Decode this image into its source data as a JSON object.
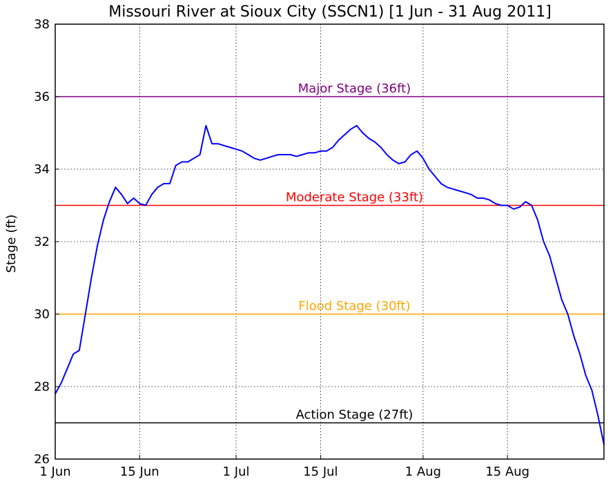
{
  "chart_data": {
    "type": "line",
    "title": "Missouri River at Sioux City (SSCN1) [1 Jun - 31 Aug 2011]",
    "xlabel": "",
    "ylabel": "Stage (ft)",
    "ylim": [
      26,
      38
    ],
    "xlim": [
      "2011-06-01",
      "2011-08-31"
    ],
    "grid": true,
    "x_ticks": [
      {
        "date": "2011-06-01",
        "label": "1 Jun"
      },
      {
        "date": "2011-06-15",
        "label": "15 Jun"
      },
      {
        "date": "2011-07-01",
        "label": "1 Jul"
      },
      {
        "date": "2011-07-15",
        "label": "15 Jul"
      },
      {
        "date": "2011-08-01",
        "label": "1 Aug"
      },
      {
        "date": "2011-08-15",
        "label": "15 Aug"
      }
    ],
    "y_ticks": [
      26,
      28,
      30,
      32,
      34,
      36,
      38
    ],
    "thresholds": [
      {
        "label": "Major Stage (36ft)",
        "value": 36,
        "color": "#800080"
      },
      {
        "label": "Moderate Stage (33ft)",
        "value": 33,
        "color": "#ff0000"
      },
      {
        "label": "Flood Stage (30ft)",
        "value": 30,
        "color": "#ffa500"
      },
      {
        "label": "Action Stage (27ft)",
        "value": 27,
        "color": "#000000"
      }
    ],
    "series": [
      {
        "color": "#0000ff",
        "points": [
          [
            "2011-06-01",
            27.8
          ],
          [
            "2011-06-02",
            28.1
          ],
          [
            "2011-06-03",
            28.5
          ],
          [
            "2011-06-04",
            28.9
          ],
          [
            "2011-06-05",
            29.0
          ],
          [
            "2011-06-06",
            30.0
          ],
          [
            "2011-06-07",
            31.0
          ],
          [
            "2011-06-08",
            31.9
          ],
          [
            "2011-06-09",
            32.6
          ],
          [
            "2011-06-10",
            33.1
          ],
          [
            "2011-06-11",
            33.5
          ],
          [
            "2011-06-12",
            33.3
          ],
          [
            "2011-06-13",
            33.05
          ],
          [
            "2011-06-14",
            33.2
          ],
          [
            "2011-06-15",
            33.05
          ],
          [
            "2011-06-16",
            33.0
          ],
          [
            "2011-06-17",
            33.3
          ],
          [
            "2011-06-18",
            33.5
          ],
          [
            "2011-06-19",
            33.6
          ],
          [
            "2011-06-20",
            33.6
          ],
          [
            "2011-06-21",
            34.1
          ],
          [
            "2011-06-22",
            34.2
          ],
          [
            "2011-06-23",
            34.2
          ],
          [
            "2011-06-24",
            34.3
          ],
          [
            "2011-06-25",
            34.4
          ],
          [
            "2011-06-26",
            35.2
          ],
          [
            "2011-06-27",
            34.7
          ],
          [
            "2011-06-28",
            34.7
          ],
          [
            "2011-06-29",
            34.65
          ],
          [
            "2011-06-30",
            34.6
          ],
          [
            "2011-07-01",
            34.55
          ],
          [
            "2011-07-02",
            34.5
          ],
          [
            "2011-07-03",
            34.4
          ],
          [
            "2011-07-04",
            34.3
          ],
          [
            "2011-07-05",
            34.25
          ],
          [
            "2011-07-06",
            34.3
          ],
          [
            "2011-07-07",
            34.35
          ],
          [
            "2011-07-08",
            34.4
          ],
          [
            "2011-07-09",
            34.4
          ],
          [
            "2011-07-10",
            34.4
          ],
          [
            "2011-07-11",
            34.35
          ],
          [
            "2011-07-12",
            34.4
          ],
          [
            "2011-07-13",
            34.45
          ],
          [
            "2011-07-14",
            34.45
          ],
          [
            "2011-07-15",
            34.5
          ],
          [
            "2011-07-16",
            34.5
          ],
          [
            "2011-07-17",
            34.6
          ],
          [
            "2011-07-18",
            34.8
          ],
          [
            "2011-07-19",
            34.95
          ],
          [
            "2011-07-20",
            35.1
          ],
          [
            "2011-07-21",
            35.2
          ],
          [
            "2011-07-22",
            35.0
          ],
          [
            "2011-07-23",
            34.85
          ],
          [
            "2011-07-24",
            34.75
          ],
          [
            "2011-07-25",
            34.6
          ],
          [
            "2011-07-26",
            34.4
          ],
          [
            "2011-07-27",
            34.25
          ],
          [
            "2011-07-28",
            34.15
          ],
          [
            "2011-07-29",
            34.2
          ],
          [
            "2011-07-30",
            34.4
          ],
          [
            "2011-07-31",
            34.5
          ],
          [
            "2011-08-01",
            34.3
          ],
          [
            "2011-08-02",
            34.0
          ],
          [
            "2011-08-03",
            33.8
          ],
          [
            "2011-08-04",
            33.6
          ],
          [
            "2011-08-05",
            33.5
          ],
          [
            "2011-08-06",
            33.45
          ],
          [
            "2011-08-07",
            33.4
          ],
          [
            "2011-08-08",
            33.35
          ],
          [
            "2011-08-09",
            33.3
          ],
          [
            "2011-08-10",
            33.2
          ],
          [
            "2011-08-11",
            33.2
          ],
          [
            "2011-08-12",
            33.15
          ],
          [
            "2011-08-13",
            33.05
          ],
          [
            "2011-08-14",
            33.0
          ],
          [
            "2011-08-15",
            33.0
          ],
          [
            "2011-08-16",
            32.9
          ],
          [
            "2011-08-17",
            32.95
          ],
          [
            "2011-08-18",
            33.1
          ],
          [
            "2011-08-19",
            33.0
          ],
          [
            "2011-08-20",
            32.6
          ],
          [
            "2011-08-21",
            32.0
          ],
          [
            "2011-08-22",
            31.6
          ],
          [
            "2011-08-23",
            31.0
          ],
          [
            "2011-08-24",
            30.4
          ],
          [
            "2011-08-25",
            30.0
          ],
          [
            "2011-08-26",
            29.4
          ],
          [
            "2011-08-27",
            28.9
          ],
          [
            "2011-08-28",
            28.3
          ],
          [
            "2011-08-29",
            27.9
          ],
          [
            "2011-08-30",
            27.2
          ],
          [
            "2011-08-31",
            26.4
          ]
        ]
      }
    ]
  }
}
